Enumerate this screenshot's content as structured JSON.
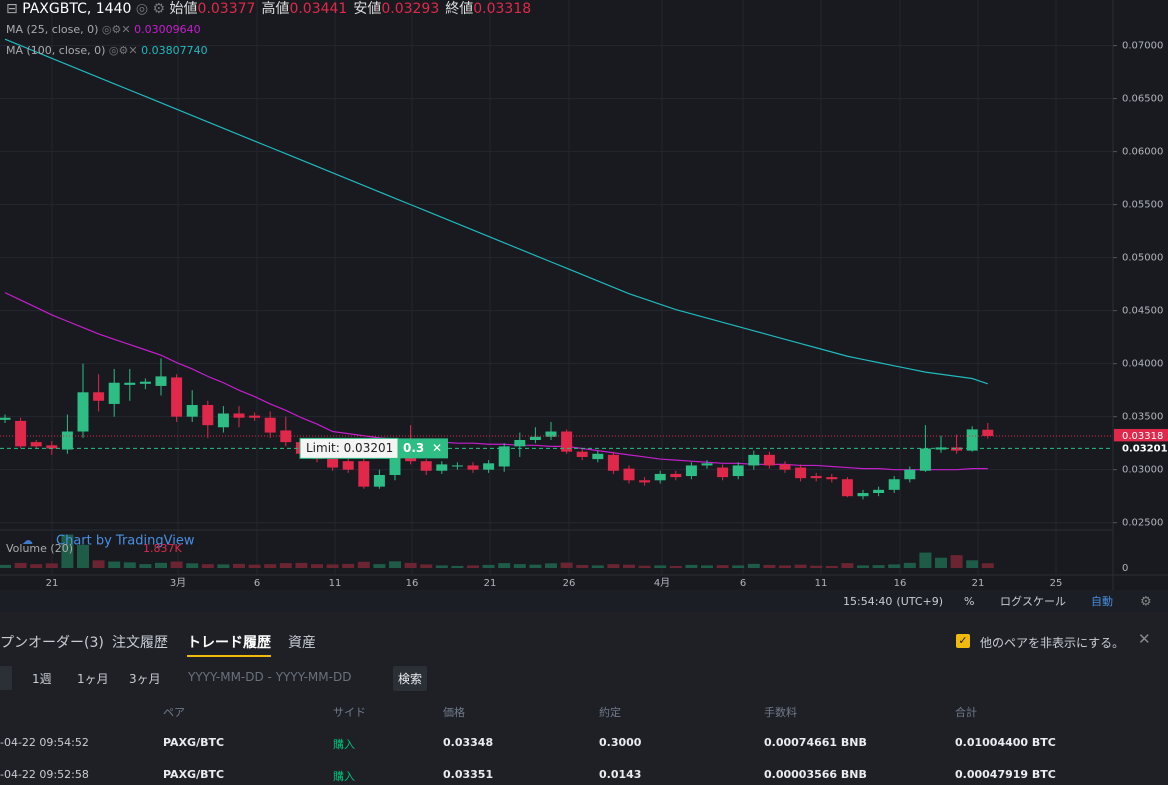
{
  "chart": {
    "type": "candlestick",
    "symbol": "PAXGBTC, 1440",
    "ohlc_labels": [
      "始値",
      "高値",
      "安値",
      "終値"
    ],
    "ylim": [
      0.0245,
      0.0743
    ],
    "yticks": [
      {
        "value": 0.025,
        "label": "0.02500"
      },
      {
        "value": 0.03,
        "label": "0.03000"
      },
      {
        "value": 0.035,
        "label": "0.03500"
      },
      {
        "value": 0.04,
        "label": "0.04000"
      },
      {
        "value": 0.045,
        "label": "0.04500"
      },
      {
        "value": 0.05,
        "label": "0.05000"
      },
      {
        "value": 0.055,
        "label": "0.05500"
      },
      {
        "value": 0.06,
        "label": "0.06000"
      },
      {
        "value": 0.065,
        "label": "0.06500"
      },
      {
        "value": 0.07,
        "label": "0.07000"
      }
    ],
    "time_labels": [
      "21",
      "3月",
      "6",
      "11",
      "16",
      "21",
      "26",
      "4月",
      "6",
      "11",
      "16",
      "21",
      "25"
    ],
    "up_color": "#2dbd85",
    "down_color": "#e0294a",
    "candles": [
      [
        0.0347,
        0.0352,
        0.0344,
        0.0349
      ],
      [
        0.0346,
        0.0349,
        0.032,
        0.0322
      ],
      [
        0.0326,
        0.0328,
        0.032,
        0.0322
      ],
      [
        0.0323,
        0.0327,
        0.0314,
        0.032
      ],
      [
        0.0319,
        0.0352,
        0.0315,
        0.0336
      ],
      [
        0.0336,
        0.04,
        0.033,
        0.0373
      ],
      [
        0.0373,
        0.039,
        0.0355,
        0.0365
      ],
      [
        0.0362,
        0.0395,
        0.035,
        0.0382
      ],
      [
        0.038,
        0.0395,
        0.0365,
        0.0382
      ],
      [
        0.0381,
        0.0386,
        0.0376,
        0.0383
      ],
      [
        0.0379,
        0.0405,
        0.037,
        0.0388
      ],
      [
        0.0387,
        0.039,
        0.0345,
        0.035
      ],
      [
        0.035,
        0.0375,
        0.0345,
        0.0361
      ],
      [
        0.0361,
        0.0365,
        0.033,
        0.0342
      ],
      [
        0.034,
        0.036,
        0.0335,
        0.0353
      ],
      [
        0.0353,
        0.036,
        0.034,
        0.0349
      ],
      [
        0.0351,
        0.0354,
        0.0346,
        0.0349
      ],
      [
        0.0349,
        0.0355,
        0.033,
        0.0335
      ],
      [
        0.0337,
        0.035,
        0.0322,
        0.0326
      ],
      [
        0.0326,
        0.0329,
        0.0312,
        0.0315
      ],
      [
        0.032,
        0.0323,
        0.0307,
        0.031
      ],
      [
        0.0312,
        0.0315,
        0.0299,
        0.0302
      ],
      [
        0.0308,
        0.0311,
        0.0297,
        0.03
      ],
      [
        0.0308,
        0.0312,
        0.0282,
        0.0284
      ],
      [
        0.0284,
        0.03,
        0.0282,
        0.0295
      ],
      [
        0.0295,
        0.032,
        0.029,
        0.0317
      ],
      [
        0.0316,
        0.0342,
        0.0305,
        0.0308
      ],
      [
        0.0308,
        0.031,
        0.0295,
        0.0299
      ],
      [
        0.0299,
        0.0308,
        0.0296,
        0.0305
      ],
      [
        0.0303,
        0.0307,
        0.03,
        0.0304
      ],
      [
        0.0304,
        0.0307,
        0.0297,
        0.03
      ],
      [
        0.03,
        0.0309,
        0.0297,
        0.0306
      ],
      [
        0.0303,
        0.0325,
        0.0298,
        0.0322
      ],
      [
        0.0322,
        0.0335,
        0.0312,
        0.0328
      ],
      [
        0.0328,
        0.034,
        0.0325,
        0.0331
      ],
      [
        0.0331,
        0.0345,
        0.0328,
        0.0336
      ],
      [
        0.0336,
        0.0338,
        0.0315,
        0.0317
      ],
      [
        0.0317,
        0.032,
        0.0309,
        0.0312
      ],
      [
        0.031,
        0.0318,
        0.0307,
        0.0315
      ],
      [
        0.0314,
        0.0317,
        0.0296,
        0.0299
      ],
      [
        0.0301,
        0.0304,
        0.0287,
        0.029
      ],
      [
        0.029,
        0.0293,
        0.0285,
        0.0288
      ],
      [
        0.029,
        0.0299,
        0.0287,
        0.0296
      ],
      [
        0.0296,
        0.0299,
        0.029,
        0.0293
      ],
      [
        0.0294,
        0.0307,
        0.0291,
        0.0304
      ],
      [
        0.0304,
        0.0309,
        0.0301,
        0.0306
      ],
      [
        0.0302,
        0.0305,
        0.029,
        0.0293
      ],
      [
        0.0294,
        0.0307,
        0.0291,
        0.0304
      ],
      [
        0.0304,
        0.0318,
        0.03,
        0.0314
      ],
      [
        0.0314,
        0.0317,
        0.0301,
        0.0304
      ],
      [
        0.0305,
        0.0308,
        0.0297,
        0.03
      ],
      [
        0.0302,
        0.0305,
        0.0289,
        0.0292
      ],
      [
        0.0294,
        0.0297,
        0.0289,
        0.0292
      ],
      [
        0.0293,
        0.0296,
        0.0288,
        0.0291
      ],
      [
        0.0291,
        0.0293,
        0.0274,
        0.0275
      ],
      [
        0.0275,
        0.0281,
        0.0272,
        0.0278
      ],
      [
        0.0278,
        0.0284,
        0.0275,
        0.0281
      ],
      [
        0.0281,
        0.0294,
        0.0278,
        0.0291
      ],
      [
        0.0291,
        0.0303,
        0.0288,
        0.03
      ],
      [
        0.0299,
        0.0342,
        0.0298,
        0.032
      ],
      [
        0.0319,
        0.0332,
        0.0316,
        0.0321
      ],
      [
        0.0321,
        0.0333,
        0.0315,
        0.0318
      ],
      [
        0.0318,
        0.0341,
        0.0317,
        0.0338
      ],
      [
        0.03377,
        0.03441,
        0.03293,
        0.03318
      ]
    ],
    "ma": [
      {
        "name": "MA (25, close, 0)",
        "color": "#c41fcc",
        "value_label": "0.03009640",
        "values": [
          0.0467,
          0.046,
          0.0453,
          0.0446,
          0.044,
          0.0434,
          0.0428,
          0.0423,
          0.0418,
          0.0413,
          0.0408,
          0.0401,
          0.0395,
          0.0388,
          0.0382,
          0.0375,
          0.0369,
          0.0362,
          0.0356,
          0.0349,
          0.0343,
          0.0336,
          0.0334,
          0.0332,
          0.033,
          0.0329,
          0.0328,
          0.0327,
          0.0326,
          0.0325,
          0.0325,
          0.0324,
          0.0324,
          0.0323,
          0.0323,
          0.0322,
          0.0322,
          0.032,
          0.0318,
          0.0316,
          0.0314,
          0.0312,
          0.031,
          0.0309,
          0.0308,
          0.0307,
          0.0306,
          0.0306,
          0.0305,
          0.0305,
          0.0305,
          0.0304,
          0.0304,
          0.0303,
          0.0302,
          0.0301,
          0.0301,
          0.03,
          0.03,
          0.03,
          0.03,
          0.03,
          0.0301,
          0.0301
        ]
      },
      {
        "name": "MA (100, close, 0)",
        "color": "#22b8bd",
        "value_label": "0.03807740",
        "values": [
          0.0706,
          0.07,
          0.0694,
          0.0688,
          0.0682,
          0.0676,
          0.067,
          0.0664,
          0.0658,
          0.0652,
          0.0646,
          0.064,
          0.0634,
          0.0628,
          0.0622,
          0.0616,
          0.061,
          0.0604,
          0.0598,
          0.0592,
          0.0586,
          0.058,
          0.0574,
          0.0568,
          0.0562,
          0.0556,
          0.055,
          0.0544,
          0.0538,
          0.0532,
          0.0526,
          0.052,
          0.0514,
          0.0508,
          0.0502,
          0.0496,
          0.049,
          0.0484,
          0.0478,
          0.0472,
          0.0466,
          0.0461,
          0.0456,
          0.0451,
          0.0447,
          0.0443,
          0.0439,
          0.0435,
          0.0431,
          0.0427,
          0.0423,
          0.0419,
          0.0415,
          0.0411,
          0.0407,
          0.0404,
          0.0401,
          0.0398,
          0.0395,
          0.0392,
          0.039,
          0.0388,
          0.0386,
          0.0381
        ]
      }
    ],
    "volume": {
      "name": "Volume (20)",
      "value_label": "1.837K",
      "ylim": [
        0,
        14
      ],
      "yticks": [
        0
      ],
      "values": [
        1.2,
        2.0,
        1.5,
        1.8,
        13,
        9,
        3,
        2.5,
        2.2,
        1.5,
        2.0,
        2.5,
        1.8,
        1.5,
        1.4,
        1.6,
        1.3,
        1.5,
        1.9,
        2.0,
        1.5,
        1.4,
        1.6,
        2.4,
        1.5,
        2.6,
        2.0,
        1.4,
        1.0,
        0.8,
        1.0,
        1.2,
        1.9,
        1.5,
        1.3,
        1.8,
        2.1,
        1.2,
        1.0,
        1.5,
        1.3,
        0.9,
        1.0,
        0.8,
        1.2,
        1.0,
        1.1,
        1.0,
        1.6,
        1.2,
        1.0,
        1.3,
        0.9,
        0.8,
        1.9,
        1.0,
        1.1,
        1.4,
        2.0,
        6.0,
        4.0,
        5.0,
        3.0,
        1.837
      ]
    },
    "order": {
      "label": "Limit: 0.03201",
      "price": 0.03201,
      "qty_label": "0.3",
      "close": "✕"
    },
    "watermark": "Chart by TradingView",
    "toolbar": {
      "time": "15:54:40",
      "tz": "(UTC+9)",
      "percent": "%",
      "log": "ログスケール",
      "auto": "自動"
    }
  },
  "panel": {
    "tabs": [
      "プンオーダー(3)",
      "注文履歴",
      "トレード履歴",
      "資産"
    ],
    "hide_other": "他のペアを非表示にする。",
    "filters": [
      "1週",
      "1ヶ月",
      "3ヶ月"
    ],
    "date_placeholder": "YYYY-MM-DD - YYYY-MM-DD",
    "search": "検索",
    "table": {
      "columns": [
        "ペア",
        "サイド",
        "価格",
        "約定",
        "手数料",
        "合計"
      ],
      "rows": [
        [
          "-04-22 09:54:52",
          "PAXG/BTC",
          "購入",
          "0.03348",
          "0.3000",
          "0.00074661 BNB",
          "0.01004400 BTC"
        ],
        [
          "-04-22 09:52:58",
          "PAXG/BTC",
          "購入",
          "0.03351",
          "0.0143",
          "0.00003566 BNB",
          "0.00047919 BTC"
        ]
      ]
    }
  }
}
